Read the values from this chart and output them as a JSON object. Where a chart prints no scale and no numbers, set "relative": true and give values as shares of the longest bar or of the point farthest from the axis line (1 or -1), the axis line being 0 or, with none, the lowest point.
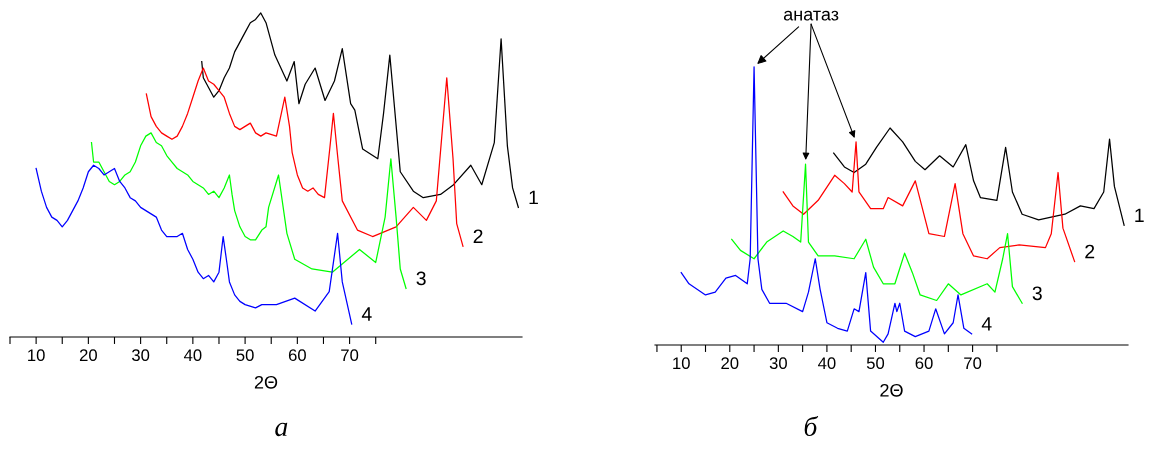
{
  "chart_data": [
    {
      "type": "line",
      "relative": true,
      "tick_labels": "x",
      "xlabel": "2Θ",
      "xlim": [
        5,
        103
      ],
      "xticks": [
        {
          "value": 5,
          "label": null
        },
        10,
        {
          "value": 15,
          "label": null
        },
        20,
        {
          "value": 25,
          "label": null
        },
        30,
        {
          "value": 35,
          "label": null
        },
        40,
        {
          "value": 45,
          "label": null
        },
        50,
        {
          "value": 55,
          "label": null
        },
        60,
        {
          "value": 65,
          "label": null
        },
        70,
        {
          "value": 75,
          "label": null
        }
      ],
      "series": [
        {
          "name": "1",
          "color": "#000000",
          "x": [
            41.7,
            42,
            43,
            44,
            45,
            46,
            47,
            48,
            49,
            50,
            51,
            52,
            53,
            54,
            55.7,
            58,
            59.4,
            60.3,
            61.5,
            63.4,
            65.3,
            67.1,
            68.6,
            70.2,
            71,
            72.5,
            75.4,
            76.5,
            77.7,
            79.7,
            82.2,
            84.1,
            87.4,
            89.9,
            93.2,
            95.3,
            97.7,
            99.0,
            100.2,
            101.2,
            102.3
          ],
          "values": [
            0.85,
            0.8,
            0.77,
            0.74,
            0.76,
            0.8,
            0.83,
            0.88,
            0.91,
            0.94,
            0.97,
            0.98,
            1.0,
            0.97,
            0.87,
            0.79,
            0.85,
            0.72,
            0.78,
            0.83,
            0.73,
            0.79,
            0.89,
            0.72,
            0.7,
            0.58,
            0.55,
            0.69,
            0.87,
            0.51,
            0.45,
            0.43,
            0.44,
            0.47,
            0.53,
            0.47,
            0.6,
            0.92,
            0.59,
            0.46,
            0.4
          ]
        },
        {
          "name": "2",
          "color": "#ff0000",
          "x": [
            31.1,
            32,
            33,
            34,
            35,
            36,
            37,
            38,
            39,
            40,
            41,
            42,
            43,
            44,
            45,
            46,
            47,
            48,
            49,
            50,
            51,
            52,
            53,
            54,
            56,
            57.6,
            58.5,
            59,
            60,
            61,
            62,
            63,
            64,
            65.2,
            66.2,
            66.9,
            67.7,
            68.6,
            71.5,
            74.4,
            78.9,
            82.2,
            84.7,
            86.6,
            88.6,
            89.8,
            90.5,
            91.7
          ],
          "values": [
            0.75,
            0.68,
            0.65,
            0.63,
            0.62,
            0.61,
            0.62,
            0.65,
            0.69,
            0.74,
            0.79,
            0.83,
            0.79,
            0.78,
            0.76,
            0.74,
            0.69,
            0.65,
            0.64,
            0.65,
            0.66,
            0.63,
            0.62,
            0.63,
            0.62,
            0.74,
            0.65,
            0.57,
            0.5,
            0.46,
            0.45,
            0.46,
            0.44,
            0.43,
            0.58,
            0.69,
            0.56,
            0.42,
            0.33,
            0.31,
            0.34,
            0.4,
            0.36,
            0.42,
            0.8,
            0.55,
            0.35,
            0.28
          ]
        },
        {
          "name": "3",
          "color": "#00ff00",
          "x": [
            20.6,
            21,
            22,
            23,
            24,
            25,
            26,
            27,
            28,
            29,
            30,
            31,
            32,
            33,
            34,
            35,
            36,
            37,
            38,
            39,
            40,
            42,
            43,
            44,
            45,
            46,
            47,
            47.5,
            48,
            49,
            50,
            51,
            52,
            53.2,
            54,
            54.5,
            56.4,
            58,
            59.5,
            62.8,
            66.7,
            71.9,
            75.0,
            76.8,
            77.9,
            78.9,
            79.7,
            80.8
          ],
          "values": [
            0.6,
            0.54,
            0.54,
            0.51,
            0.48,
            0.47,
            0.48,
            0.5,
            0.51,
            0.54,
            0.59,
            0.62,
            0.63,
            0.6,
            0.59,
            0.56,
            0.54,
            0.52,
            0.51,
            0.5,
            0.48,
            0.46,
            0.44,
            0.45,
            0.43,
            0.46,
            0.5,
            0.44,
            0.39,
            0.34,
            0.31,
            0.3,
            0.3,
            0.33,
            0.34,
            0.4,
            0.5,
            0.32,
            0.24,
            0.21,
            0.2,
            0.27,
            0.23,
            0.37,
            0.55,
            0.37,
            0.21,
            0.15
          ]
        },
        {
          "name": "4",
          "color": "#0000ff",
          "x": [
            10,
            11,
            12,
            13,
            14,
            15,
            16,
            17,
            18,
            19,
            20,
            21,
            22,
            23,
            24,
            25,
            26,
            27,
            28,
            29,
            30,
            31,
            32,
            33,
            34,
            35,
            36,
            37,
            38,
            39,
            40,
            41,
            42,
            43,
            44,
            45,
            45.8,
            46.5,
            47,
            48,
            49,
            50,
            52,
            53.2,
            56,
            59.5,
            63.4,
            66.1,
            67.7,
            68.6,
            70.4
          ],
          "values": [
            0.52,
            0.45,
            0.4,
            0.37,
            0.36,
            0.34,
            0.36,
            0.39,
            0.42,
            0.46,
            0.51,
            0.53,
            0.52,
            0.5,
            0.51,
            0.52,
            0.48,
            0.46,
            0.43,
            0.42,
            0.4,
            0.39,
            0.38,
            0.37,
            0.33,
            0.31,
            0.31,
            0.31,
            0.32,
            0.27,
            0.24,
            0.2,
            0.18,
            0.19,
            0.17,
            0.2,
            0.31,
            0.23,
            0.17,
            0.13,
            0.11,
            0.1,
            0.09,
            0.1,
            0.1,
            0.12,
            0.08,
            0.14,
            0.32,
            0.17,
            0.04
          ]
        }
      ],
      "annotations": [
        "а"
      ]
    },
    {
      "type": "line",
      "relative": true,
      "tick_labels": "x",
      "xlabel": "2Θ",
      "xlim": [
        4.6,
        102
      ],
      "xticks": [
        {
          "value": 5,
          "label": null
        },
        10,
        {
          "value": 15,
          "label": null
        },
        20,
        {
          "value": 25,
          "label": null
        },
        30,
        {
          "value": 35,
          "label": null
        },
        40,
        {
          "value": 45,
          "label": null
        },
        50,
        {
          "value": 55,
          "label": null
        },
        60,
        {
          "value": 65,
          "label": null
        },
        70,
        {
          "value": 75,
          "label": null
        }
      ],
      "series": [
        {
          "name": "1",
          "color": "#000000",
          "x": [
            41.4,
            43.6,
            45.6,
            48,
            50.2,
            53,
            55.6,
            58.2,
            60.2,
            63.2,
            66,
            68.6,
            70.2,
            71.6,
            75,
            76.8,
            78.2,
            80.2,
            83.6,
            89,
            92.2,
            95,
            97,
            98.2,
            99.2,
            101.2
          ],
          "values": [
            0.69,
            0.64,
            0.62,
            0.65,
            0.71,
            0.78,
            0.73,
            0.66,
            0.63,
            0.68,
            0.64,
            0.72,
            0.59,
            0.53,
            0.52,
            0.71,
            0.55,
            0.47,
            0.45,
            0.47,
            0.5,
            0.49,
            0.55,
            0.74,
            0.57,
            0.43
          ]
        },
        {
          "name": "2",
          "color": "#ff0000",
          "x": [
            31,
            33,
            35.2,
            38.2,
            41.6,
            43.6,
            45.2,
            46,
            46.6,
            49,
            51.6,
            52.6,
            55.6,
            58.2,
            61,
            64.2,
            66.4,
            68,
            70.2,
            73,
            75.6,
            79.6,
            85,
            86.2,
            87.6,
            88.6,
            91
          ],
          "values": [
            0.55,
            0.5,
            0.47,
            0.52,
            0.61,
            0.58,
            0.55,
            0.73,
            0.55,
            0.49,
            0.49,
            0.53,
            0.5,
            0.59,
            0.4,
            0.39,
            0.58,
            0.4,
            0.32,
            0.31,
            0.35,
            0.36,
            0.35,
            0.4,
            0.62,
            0.42,
            0.3
          ]
        },
        {
          "name": "3",
          "color": "#00ff00",
          "x": [
            20.4,
            22.2,
            25,
            27.6,
            31,
            33,
            34.6,
            35.6,
            36.2,
            38.2,
            41.6,
            45.6,
            48,
            49.6,
            51.6,
            54,
            56,
            57.6,
            59.2,
            62.6,
            65,
            67.6,
            73,
            74.6,
            76.2,
            77.2,
            78.2,
            80.2
          ],
          "values": [
            0.38,
            0.34,
            0.31,
            0.37,
            0.41,
            0.39,
            0.37,
            0.65,
            0.37,
            0.32,
            0.32,
            0.31,
            0.38,
            0.28,
            0.22,
            0.22,
            0.33,
            0.26,
            0.18,
            0.16,
            0.22,
            0.18,
            0.22,
            0.19,
            0.31,
            0.4,
            0.21,
            0.15
          ]
        },
        {
          "name": "4",
          "color": "#0000ff",
          "x": [
            10,
            11.6,
            15,
            17,
            19.2,
            21.2,
            23.6,
            24.2,
            25,
            25.8,
            26.6,
            28.2,
            31.6,
            35,
            36.2,
            37.6,
            38.6,
            40,
            42.2,
            44.2,
            45.6,
            46.6,
            48,
            49,
            51.6,
            52.6,
            54,
            54.4,
            55,
            56,
            58.2,
            61,
            62.4,
            64.2,
            66,
            67,
            68.2,
            69.8
          ],
          "values": [
            0.26,
            0.22,
            0.18,
            0.19,
            0.24,
            0.25,
            0.22,
            0.31,
            1.0,
            0.31,
            0.2,
            0.15,
            0.15,
            0.12,
            0.19,
            0.31,
            0.2,
            0.08,
            0.06,
            0.05,
            0.13,
            0.12,
            0.26,
            0.05,
            0.01,
            0.04,
            0.15,
            0.12,
            0.15,
            0.05,
            0.03,
            0.05,
            0.13,
            0.04,
            0.08,
            0.18,
            0.06,
            0.04
          ]
        }
      ],
      "annotations": [
        {
          "text": "анатаз",
          "x": 25.0,
          "y": 1.0
        },
        "б"
      ]
    }
  ]
}
